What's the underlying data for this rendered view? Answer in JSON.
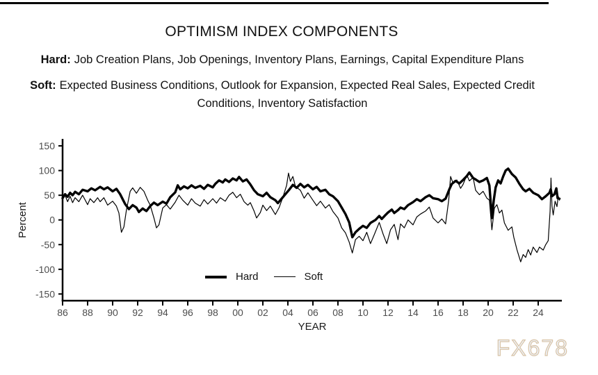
{
  "header": {
    "title": "OPTIMISM INDEX COMPONENTS",
    "definitions": [
      {
        "label": "Hard:",
        "text": "Job Creation Plans, Job Openings, Inventory Plans, Earnings, Capital Expenditure Plans"
      },
      {
        "label": "Soft:",
        "text": "Expected Business Conditions, Outlook for Expansion, Expected Real Sales, Expected Credit Conditions, Inventory Satisfaction"
      }
    ]
  },
  "watermark": "FX678",
  "chart_data": {
    "type": "line",
    "title": "OPTIMISM INDEX COMPONENTS",
    "xlabel": "YEAR",
    "ylabel": "Percent",
    "grid": false,
    "legend_position": "inside-bottom-center",
    "line_color": "#000000",
    "axis_color": "#000000",
    "tick_label_color": "#4d4d4d",
    "xlim": [
      1986,
      2025.9
    ],
    "ylim": [
      -164,
      164
    ],
    "y_ticks": [
      150,
      100,
      50,
      0,
      -50,
      -100,
      -150
    ],
    "x_tick_labels": [
      "86",
      "88",
      "90",
      "92",
      "94",
      "96",
      "98",
      "00",
      "02",
      "04",
      "06",
      "08",
      "10",
      "12",
      "14",
      "16",
      "18",
      "20",
      "22",
      "24"
    ],
    "x_tick_years": [
      1986,
      1988,
      1990,
      1992,
      1994,
      1996,
      1998,
      2000,
      2002,
      2004,
      2006,
      2008,
      2010,
      2012,
      2014,
      2016,
      2018,
      2020,
      2022,
      2024
    ],
    "series": [
      {
        "name": "Hard",
        "style": "thick",
        "points": [
          [
            1986,
            44
          ],
          [
            1986.2,
            52
          ],
          [
            1986.4,
            47
          ],
          [
            1986.6,
            55
          ],
          [
            1986.8,
            50
          ],
          [
            1987,
            57
          ],
          [
            1987.3,
            52
          ],
          [
            1987.6,
            61
          ],
          [
            1988,
            58
          ],
          [
            1988.3,
            64
          ],
          [
            1988.6,
            60
          ],
          [
            1989,
            67
          ],
          [
            1989.3,
            62
          ],
          [
            1989.6,
            66
          ],
          [
            1990,
            58
          ],
          [
            1990.3,
            63
          ],
          [
            1990.6,
            52
          ],
          [
            1990.8,
            42
          ],
          [
            1991,
            32
          ],
          [
            1991.3,
            22
          ],
          [
            1991.6,
            30
          ],
          [
            1991.9,
            25
          ],
          [
            1992.1,
            16
          ],
          [
            1992.4,
            23
          ],
          [
            1992.7,
            18
          ],
          [
            1993,
            28
          ],
          [
            1993.3,
            35
          ],
          [
            1993.6,
            30
          ],
          [
            1994,
            37
          ],
          [
            1994.3,
            33
          ],
          [
            1994.6,
            46
          ],
          [
            1995,
            56
          ],
          [
            1995.2,
            70
          ],
          [
            1995.4,
            62
          ],
          [
            1995.7,
            68
          ],
          [
            1996,
            64
          ],
          [
            1996.3,
            70
          ],
          [
            1996.6,
            65
          ],
          [
            1997,
            69
          ],
          [
            1997.3,
            63
          ],
          [
            1997.6,
            71
          ],
          [
            1998,
            66
          ],
          [
            1998.2,
            73
          ],
          [
            1998.5,
            80
          ],
          [
            1998.8,
            76
          ],
          [
            1999,
            82
          ],
          [
            1999.3,
            77
          ],
          [
            1999.6,
            84
          ],
          [
            1999.9,
            80
          ],
          [
            2000.1,
            87
          ],
          [
            2000.4,
            78
          ],
          [
            2000.7,
            82
          ],
          [
            2001,
            72
          ],
          [
            2001.3,
            60
          ],
          [
            2001.6,
            52
          ],
          [
            2002,
            48
          ],
          [
            2002.3,
            55
          ],
          [
            2002.6,
            46
          ],
          [
            2003,
            40
          ],
          [
            2003.2,
            34
          ],
          [
            2003.5,
            43
          ],
          [
            2003.8,
            52
          ],
          [
            2004.1,
            61
          ],
          [
            2004.4,
            71
          ],
          [
            2004.7,
            65
          ],
          [
            2005,
            73
          ],
          [
            2005.3,
            66
          ],
          [
            2005.6,
            71
          ],
          [
            2006,
            62
          ],
          [
            2006.3,
            67
          ],
          [
            2006.6,
            58
          ],
          [
            2007,
            61
          ],
          [
            2007.3,
            52
          ],
          [
            2007.6,
            48
          ],
          [
            2008,
            38
          ],
          [
            2008.3,
            25
          ],
          [
            2008.6,
            12
          ],
          [
            2008.9,
            -5
          ],
          [
            2009.15,
            -35
          ],
          [
            2009.4,
            -25
          ],
          [
            2009.7,
            -18
          ],
          [
            2010,
            -12
          ],
          [
            2010.3,
            -16
          ],
          [
            2010.6,
            -6
          ],
          [
            2011,
            0
          ],
          [
            2011.3,
            8
          ],
          [
            2011.5,
            2
          ],
          [
            2011.8,
            10
          ],
          [
            2012,
            15
          ],
          [
            2012.3,
            21
          ],
          [
            2012.5,
            14
          ],
          [
            2012.8,
            20
          ],
          [
            2013,
            25
          ],
          [
            2013.3,
            22
          ],
          [
            2013.6,
            30
          ],
          [
            2014,
            36
          ],
          [
            2014.3,
            42
          ],
          [
            2014.6,
            38
          ],
          [
            2015,
            46
          ],
          [
            2015.3,
            50
          ],
          [
            2015.6,
            44
          ],
          [
            2016,
            42
          ],
          [
            2016.3,
            38
          ],
          [
            2016.6,
            43
          ],
          [
            2016.9,
            62
          ],
          [
            2017.1,
            73
          ],
          [
            2017.4,
            79
          ],
          [
            2017.7,
            74
          ],
          [
            2018,
            81
          ],
          [
            2018.3,
            89
          ],
          [
            2018.5,
            96
          ],
          [
            2018.8,
            85
          ],
          [
            2019,
            82
          ],
          [
            2019.3,
            77
          ],
          [
            2019.6,
            80
          ],
          [
            2019.9,
            85
          ],
          [
            2020.1,
            70
          ],
          [
            2020.3,
            4
          ],
          [
            2020.45,
            40
          ],
          [
            2020.6,
            66
          ],
          [
            2020.8,
            80
          ],
          [
            2021,
            74
          ],
          [
            2021.2,
            88
          ],
          [
            2021.4,
            100
          ],
          [
            2021.6,
            104
          ],
          [
            2021.9,
            93
          ],
          [
            2022.2,
            86
          ],
          [
            2022.5,
            73
          ],
          [
            2022.8,
            62
          ],
          [
            2023,
            58
          ],
          [
            2023.3,
            63
          ],
          [
            2023.6,
            55
          ],
          [
            2024,
            50
          ],
          [
            2024.3,
            42
          ],
          [
            2024.6,
            48
          ],
          [
            2024.9,
            55
          ],
          [
            2025,
            62
          ],
          [
            2025.1,
            48
          ],
          [
            2025.3,
            52
          ],
          [
            2025.45,
            64
          ],
          [
            2025.55,
            44
          ],
          [
            2025.7,
            43
          ]
        ]
      },
      {
        "name": "Soft",
        "style": "thin",
        "points": [
          [
            1986,
            42
          ],
          [
            1986.2,
            50
          ],
          [
            1986.4,
            37
          ],
          [
            1986.6,
            48
          ],
          [
            1986.8,
            35
          ],
          [
            1987,
            45
          ],
          [
            1987.3,
            37
          ],
          [
            1987.6,
            50
          ],
          [
            1988,
            31
          ],
          [
            1988.2,
            43
          ],
          [
            1988.5,
            35
          ],
          [
            1988.8,
            45
          ],
          [
            1989,
            37
          ],
          [
            1989.3,
            45
          ],
          [
            1989.6,
            30
          ],
          [
            1990,
            38
          ],
          [
            1990.3,
            28
          ],
          [
            1990.5,
            14
          ],
          [
            1990.7,
            -25
          ],
          [
            1990.9,
            -14
          ],
          [
            1991.1,
            20
          ],
          [
            1991.4,
            58
          ],
          [
            1991.6,
            65
          ],
          [
            1991.9,
            54
          ],
          [
            1992.2,
            66
          ],
          [
            1992.5,
            58
          ],
          [
            1992.8,
            40
          ],
          [
            1993,
            30
          ],
          [
            1993.3,
            4
          ],
          [
            1993.5,
            -16
          ],
          [
            1993.7,
            -10
          ],
          [
            1994,
            24
          ],
          [
            1994.3,
            31
          ],
          [
            1994.6,
            22
          ],
          [
            1995,
            36
          ],
          [
            1995.3,
            50
          ],
          [
            1995.6,
            40
          ],
          [
            1996,
            30
          ],
          [
            1996.3,
            43
          ],
          [
            1996.6,
            34
          ],
          [
            1997,
            28
          ],
          [
            1997.3,
            41
          ],
          [
            1997.6,
            32
          ],
          [
            1998,
            43
          ],
          [
            1998.3,
            34
          ],
          [
            1998.6,
            45
          ],
          [
            1999,
            38
          ],
          [
            1999.3,
            50
          ],
          [
            1999.6,
            56
          ],
          [
            1999.9,
            45
          ],
          [
            2000.2,
            52
          ],
          [
            2000.5,
            37
          ],
          [
            2000.8,
            30
          ],
          [
            2001,
            35
          ],
          [
            2001.3,
            18
          ],
          [
            2001.5,
            4
          ],
          [
            2001.8,
            15
          ],
          [
            2002,
            30
          ],
          [
            2002.3,
            19
          ],
          [
            2002.6,
            28
          ],
          [
            2003,
            11
          ],
          [
            2003.3,
            25
          ],
          [
            2003.6,
            46
          ],
          [
            2003.9,
            70
          ],
          [
            2004.05,
            95
          ],
          [
            2004.2,
            78
          ],
          [
            2004.4,
            88
          ],
          [
            2004.6,
            68
          ],
          [
            2005,
            60
          ],
          [
            2005.3,
            44
          ],
          [
            2005.6,
            55
          ],
          [
            2006,
            40
          ],
          [
            2006.3,
            29
          ],
          [
            2006.6,
            38
          ],
          [
            2007,
            24
          ],
          [
            2007.3,
            31
          ],
          [
            2007.6,
            17
          ],
          [
            2008,
            4
          ],
          [
            2008.3,
            -16
          ],
          [
            2008.6,
            -26
          ],
          [
            2008.9,
            -45
          ],
          [
            2009.15,
            -67
          ],
          [
            2009.4,
            -40
          ],
          [
            2009.7,
            -33
          ],
          [
            2010,
            -42
          ],
          [
            2010.3,
            -25
          ],
          [
            2010.6,
            -48
          ],
          [
            2010.9,
            -30
          ],
          [
            2011.3,
            -5
          ],
          [
            2011.6,
            -28
          ],
          [
            2011.9,
            -48
          ],
          [
            2012.2,
            -20
          ],
          [
            2012.5,
            -9
          ],
          [
            2012.8,
            -40
          ],
          [
            2013,
            -8
          ],
          [
            2013.3,
            -16
          ],
          [
            2013.6,
            0
          ],
          [
            2014,
            -10
          ],
          [
            2014.3,
            6
          ],
          [
            2014.6,
            12
          ],
          [
            2015,
            18
          ],
          [
            2015.3,
            26
          ],
          [
            2015.6,
            4
          ],
          [
            2016,
            -6
          ],
          [
            2016.3,
            2
          ],
          [
            2016.6,
            -8
          ],
          [
            2016.85,
            40
          ],
          [
            2017,
            88
          ],
          [
            2017.2,
            74
          ],
          [
            2017.5,
            81
          ],
          [
            2017.8,
            64
          ],
          [
            2018,
            72
          ],
          [
            2018.3,
            91
          ],
          [
            2018.5,
            79
          ],
          [
            2018.8,
            86
          ],
          [
            2019,
            60
          ],
          [
            2019.3,
            51
          ],
          [
            2019.6,
            58
          ],
          [
            2019.9,
            44
          ],
          [
            2020.1,
            40
          ],
          [
            2020.3,
            -20
          ],
          [
            2020.5,
            24
          ],
          [
            2020.7,
            31
          ],
          [
            2020.9,
            14
          ],
          [
            2021.1,
            20
          ],
          [
            2021.3,
            -6
          ],
          [
            2021.6,
            -21
          ],
          [
            2021.9,
            -14
          ],
          [
            2022.05,
            -35
          ],
          [
            2022.3,
            -60
          ],
          [
            2022.6,
            -85
          ],
          [
            2022.8,
            -70
          ],
          [
            2023,
            -76
          ],
          [
            2023.2,
            -60
          ],
          [
            2023.4,
            -71
          ],
          [
            2023.6,
            -55
          ],
          [
            2023.9,
            -66
          ],
          [
            2024.1,
            -55
          ],
          [
            2024.4,
            -61
          ],
          [
            2024.6,
            -50
          ],
          [
            2024.8,
            -42
          ],
          [
            2024.95,
            18
          ],
          [
            2025.02,
            85
          ],
          [
            2025.1,
            28
          ],
          [
            2025.2,
            10
          ],
          [
            2025.35,
            38
          ],
          [
            2025.5,
            27
          ],
          [
            2025.6,
            48
          ],
          [
            2025.7,
            40
          ]
        ]
      }
    ]
  }
}
